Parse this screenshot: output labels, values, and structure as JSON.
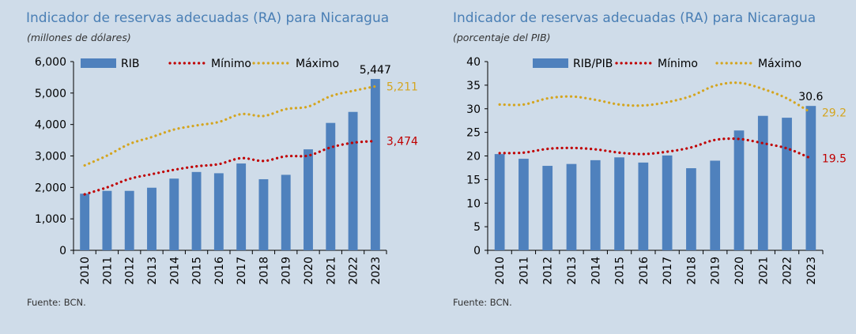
{
  "chart_data": [
    {
      "type": "bar",
      "title": "Indicador de reservas adecuadas (RA) para Nicaragua",
      "subtitle": "(millones de dólares)",
      "source": "Fuente: BCN.",
      "categories": [
        "2010",
        "2011",
        "2012",
        "2013",
        "2014",
        "2015",
        "2016",
        "2017",
        "2018",
        "2019",
        "2020",
        "2021",
        "2022",
        "2023"
      ],
      "ylim": [
        0,
        6000
      ],
      "yticks": [
        0,
        1000,
        2000,
        3000,
        4000,
        5000,
        6000
      ],
      "ytick_labels": [
        "0",
        "1,000",
        "2,000",
        "3,000",
        "4,000",
        "5,000",
        "6,000"
      ],
      "legend_position": "top",
      "series": [
        {
          "name": "RIB",
          "kind": "bar",
          "color": "#4f81bd",
          "values": [
            1800,
            1890,
            1890,
            1990,
            2280,
            2490,
            2450,
            2760,
            2260,
            2400,
            3210,
            4050,
            4400,
            5447
          ]
        },
        {
          "name": "Mínimo",
          "kind": "dotted-line",
          "color": "#c00000",
          "values": [
            1780,
            2000,
            2270,
            2420,
            2560,
            2670,
            2740,
            2930,
            2840,
            2990,
            3010,
            3270,
            3420,
            3474
          ]
        },
        {
          "name": "Máximo",
          "kind": "dotted-line",
          "color": "#d4a520",
          "values": [
            2700,
            3010,
            3380,
            3600,
            3840,
            3970,
            4080,
            4330,
            4270,
            4490,
            4570,
            4900,
            5070,
            5211
          ]
        }
      ],
      "end_labels": [
        {
          "series": 0,
          "text": "5,447",
          "color": "#000000"
        },
        {
          "series": 2,
          "text": "5,211",
          "color": "#d4a520"
        },
        {
          "series": 1,
          "text": "3,474",
          "color": "#c00000"
        }
      ]
    },
    {
      "type": "bar",
      "title": "Indicador de reservas adecuadas (RA) para Nicaragua",
      "subtitle": "(porcentaje del PIB)",
      "source": "Fuente: BCN.",
      "categories": [
        "2010",
        "2011",
        "2012",
        "2013",
        "2014",
        "2015",
        "2016",
        "2017",
        "2018",
        "2019",
        "2020",
        "2021",
        "2022",
        "2023"
      ],
      "ylim": [
        0,
        40
      ],
      "yticks": [
        0,
        5,
        10,
        15,
        20,
        25,
        30,
        35,
        40
      ],
      "ytick_labels": [
        "0",
        "5",
        "10",
        "15",
        "20",
        "25",
        "30",
        "35",
        "40"
      ],
      "legend_position": "top",
      "series": [
        {
          "name": "RIB/PIB",
          "kind": "bar",
          "color": "#4f81bd",
          "values": [
            20.4,
            19.4,
            17.9,
            18.3,
            19.1,
            19.7,
            18.6,
            20.1,
            17.4,
            19.0,
            25.4,
            28.5,
            28.1,
            30.6
          ]
        },
        {
          "name": "Mínimo",
          "kind": "dotted-line",
          "color": "#c00000",
          "values": [
            20.6,
            20.7,
            21.5,
            21.7,
            21.4,
            20.7,
            20.4,
            20.9,
            21.8,
            23.4,
            23.6,
            22.7,
            21.6,
            19.5
          ]
        },
        {
          "name": "Máximo",
          "kind": "dotted-line",
          "color": "#d4a520",
          "values": [
            30.9,
            30.9,
            32.2,
            32.6,
            31.9,
            30.9,
            30.7,
            31.4,
            32.7,
            34.9,
            35.5,
            34.2,
            32.2,
            29.2
          ]
        }
      ],
      "end_labels": [
        {
          "series": 0,
          "text": "30.6",
          "color": "#000000"
        },
        {
          "series": 2,
          "text": "29.2",
          "color": "#d4a520"
        },
        {
          "series": 1,
          "text": "19.5",
          "color": "#c00000"
        }
      ]
    }
  ]
}
